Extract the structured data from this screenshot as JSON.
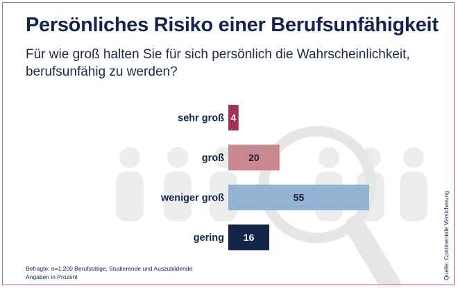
{
  "title": "Persönliches Risiko einer Berufsunfähigkeit",
  "subtitle": "Für wie groß halten Sie für sich persönlich die Wahrscheinlichkeit, berufsunfähig zu werden?",
  "footnote": {
    "line1": "Befragte: n=1.200 Berufstätige, Studierende und Auszubildende",
    "line2": "Angaben in Prozent"
  },
  "source": "Quelle: Continentale Versicherung",
  "colors": {
    "title": "#13254a",
    "border": "#b36b86",
    "background_icons": "#ececec"
  },
  "background_icons": [
    "person-silhouette-icon",
    "magnifier-icon"
  ],
  "chart_data": {
    "type": "bar",
    "orientation": "horizontal",
    "categories": [
      "sehr groß",
      "groß",
      "weniger groß",
      "gering"
    ],
    "values": [
      4,
      20,
      55,
      16
    ],
    "colors": [
      "#a5305a",
      "#c9878f",
      "#94b2d3",
      "#13254a"
    ],
    "label_colors": [
      "#ffffff",
      "#1b1b2b",
      "#1b1b2b",
      "#ffffff"
    ],
    "unit": "Prozent",
    "grid": false,
    "legend": "none"
  }
}
